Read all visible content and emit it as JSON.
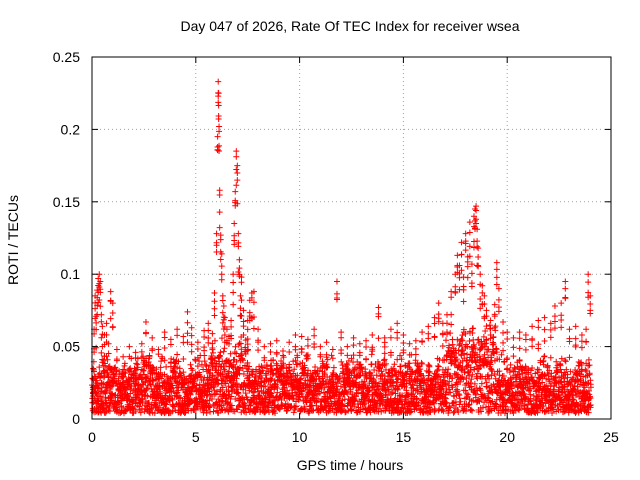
{
  "chart_data": {
    "type": "scatter",
    "title": "Day 047 of 2026, Rate Of TEC Index for receiver wsea",
    "xlabel": "GPS time / hours",
    "ylabel": "ROTI / TECUs",
    "xlim": [
      0,
      25
    ],
    "ylim": [
      0,
      0.25
    ],
    "x_ticks": [
      0,
      5,
      10,
      15,
      20,
      25
    ],
    "y_ticks": [
      0,
      0.05,
      0.1,
      0.15,
      0.2,
      0.25
    ],
    "x_tick_labels": [
      "0",
      "5",
      "10",
      "15",
      "20",
      "25"
    ],
    "y_tick_labels": [
      "0",
      "0.05",
      "0.1",
      "0.15",
      "0.2",
      "0.25"
    ],
    "grid": true,
    "legend": "none",
    "marker": "+",
    "series_color": "#ff0000",
    "series": [
      {
        "name": "",
        "points": [
          [
            0.05,
            0.028
          ],
          [
            0.1,
            0.062
          ],
          [
            0.15,
            0.085
          ],
          [
            0.2,
            0.071
          ],
          [
            0.25,
            0.089
          ],
          [
            0.3,
            0.097
          ],
          [
            0.35,
            0.1
          ],
          [
            0.4,
            0.095
          ],
          [
            0.45,
            0.072
          ],
          [
            0.5,
            0.064
          ],
          [
            0.6,
            0.058
          ],
          [
            0.7,
            0.066
          ],
          [
            0.8,
            0.052
          ],
          [
            0.9,
            0.088
          ],
          [
            1.0,
            0.08
          ],
          [
            1.2,
            0.048
          ],
          [
            1.5,
            0.043
          ],
          [
            1.8,
            0.05
          ],
          [
            2.1,
            0.046
          ],
          [
            2.4,
            0.052
          ],
          [
            2.6,
            0.067
          ],
          [
            2.9,
            0.056
          ],
          [
            3.2,
            0.048
          ],
          [
            3.5,
            0.06
          ],
          [
            3.8,
            0.055
          ],
          [
            4.1,
            0.062
          ],
          [
            4.4,
            0.057
          ],
          [
            4.6,
            0.074
          ],
          [
            4.8,
            0.063
          ],
          [
            5.1,
            0.053
          ],
          [
            5.4,
            0.061
          ],
          [
            5.6,
            0.066
          ],
          [
            5.8,
            0.059
          ],
          [
            5.9,
            0.087
          ],
          [
            6.0,
            0.128
          ],
          [
            6.05,
            0.195
          ],
          [
            6.08,
            0.233
          ],
          [
            6.1,
            0.225
          ],
          [
            6.12,
            0.202
          ],
          [
            6.15,
            0.158
          ],
          [
            6.2,
            0.127
          ],
          [
            6.25,
            0.114
          ],
          [
            6.3,
            0.085
          ],
          [
            6.35,
            0.078
          ],
          [
            6.4,
            0.07
          ],
          [
            6.5,
            0.062
          ],
          [
            6.6,
            0.057
          ],
          [
            6.7,
            0.068
          ],
          [
            6.8,
            0.1
          ],
          [
            6.85,
            0.135
          ],
          [
            6.9,
            0.157
          ],
          [
            6.95,
            0.185
          ],
          [
            7.0,
            0.175
          ],
          [
            7.05,
            0.128
          ],
          [
            7.1,
            0.11
          ],
          [
            7.15,
            0.085
          ],
          [
            7.2,
            0.098
          ],
          [
            7.3,
            0.075
          ],
          [
            7.5,
            0.068
          ],
          [
            7.6,
            0.082
          ],
          [
            7.7,
            0.087
          ],
          [
            7.8,
            0.088
          ],
          [
            8.0,
            0.062
          ],
          [
            8.3,
            0.05
          ],
          [
            8.6,
            0.052
          ],
          [
            8.9,
            0.054
          ],
          [
            9.2,
            0.047
          ],
          [
            9.5,
            0.053
          ],
          [
            9.8,
            0.058
          ],
          [
            10.1,
            0.057
          ],
          [
            10.4,
            0.055
          ],
          [
            10.7,
            0.062
          ],
          [
            11.0,
            0.05
          ],
          [
            11.3,
            0.053
          ],
          [
            11.6,
            0.048
          ],
          [
            11.8,
            0.095
          ],
          [
            12.0,
            0.06
          ],
          [
            12.3,
            0.05
          ],
          [
            12.6,
            0.056
          ],
          [
            12.9,
            0.052
          ],
          [
            13.2,
            0.054
          ],
          [
            13.5,
            0.058
          ],
          [
            13.8,
            0.077
          ],
          [
            14.1,
            0.056
          ],
          [
            14.4,
            0.062
          ],
          [
            14.7,
            0.066
          ],
          [
            15.0,
            0.058
          ],
          [
            15.3,
            0.052
          ],
          [
            15.6,
            0.054
          ],
          [
            15.9,
            0.06
          ],
          [
            16.2,
            0.064
          ],
          [
            16.5,
            0.07
          ],
          [
            16.7,
            0.08
          ],
          [
            16.9,
            0.066
          ],
          [
            17.1,
            0.072
          ],
          [
            17.3,
            0.088
          ],
          [
            17.5,
            0.1
          ],
          [
            17.6,
            0.113
          ],
          [
            17.7,
            0.106
          ],
          [
            17.8,
            0.122
          ],
          [
            17.9,
            0.098
          ],
          [
            18.0,
            0.128
          ],
          [
            18.1,
            0.112
          ],
          [
            18.2,
            0.136
          ],
          [
            18.3,
            0.107
          ],
          [
            18.4,
            0.14
          ],
          [
            18.45,
            0.145
          ],
          [
            18.5,
            0.147
          ],
          [
            18.55,
            0.131
          ],
          [
            18.6,
            0.118
          ],
          [
            18.7,
            0.1
          ],
          [
            18.8,
            0.092
          ],
          [
            18.9,
            0.085
          ],
          [
            19.0,
            0.075
          ],
          [
            19.2,
            0.068
          ],
          [
            19.4,
            0.079
          ],
          [
            19.5,
            0.108
          ],
          [
            19.6,
            0.09
          ],
          [
            19.8,
            0.067
          ],
          [
            20.0,
            0.06
          ],
          [
            20.3,
            0.056
          ],
          [
            20.6,
            0.06
          ],
          [
            20.9,
            0.058
          ],
          [
            21.2,
            0.064
          ],
          [
            21.5,
            0.068
          ],
          [
            21.8,
            0.07
          ],
          [
            22.1,
            0.066
          ],
          [
            22.3,
            0.078
          ],
          [
            22.6,
            0.08
          ],
          [
            22.8,
            0.095
          ],
          [
            23.0,
            0.062
          ],
          [
            23.3,
            0.064
          ],
          [
            23.6,
            0.058
          ],
          [
            23.8,
            0.062
          ],
          [
            23.9,
            0.1
          ],
          [
            24.0,
            0.085
          ]
        ]
      }
    ]
  }
}
